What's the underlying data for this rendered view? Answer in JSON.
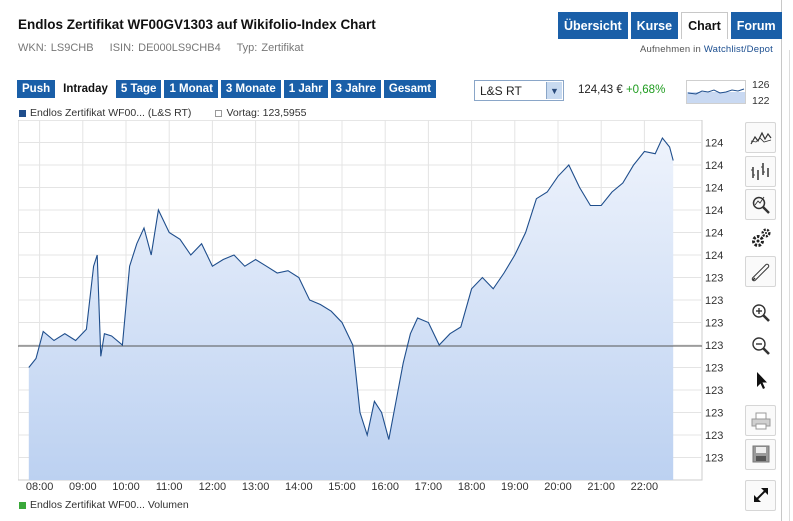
{
  "header": {
    "title": "Endlos Zertifikat WF00GV1303 auf Wikifolio-Index Chart",
    "wkn": "WKN: LS9CHB",
    "isin": "ISIN: DE000LS9CHB4",
    "typ": "Typ: Zertifikat"
  },
  "nav": {
    "tabs": [
      "Übersicht",
      "Kurse",
      "Chart",
      "Forum"
    ],
    "active": "Chart",
    "watch_prefix": "Aufnehmen in ",
    "watch_link": "Watchlist/Depot"
  },
  "toolbar": {
    "ranges": [
      "Push",
      "Intraday",
      "5 Tage",
      "1 Monat",
      "3 Monate",
      "1 Jahr",
      "3 Jahre",
      "Gesamt"
    ],
    "active_range": "Intraday",
    "exchange": "L&S RT",
    "price": "124,43 €",
    "change": "+0,68%",
    "spark_high": "126",
    "spark_low": "122"
  },
  "legend": {
    "series": "Endlos Zertifikat WF00... (L&S RT)",
    "prev": "Vortag: 123,5955",
    "volume": "Endlos Zertifikat WF00... Volumen"
  },
  "colors": {
    "accent": "#1a5fa8",
    "line": "#1f4e8c",
    "fill_top": "#eef3fc",
    "fill_bottom": "#bcd1f1",
    "change_positive": "#1e9c1e",
    "volume": "#3aa83a"
  },
  "tools": [
    "line-chart-icon",
    "ohlc-chart-icon",
    "zoom-area-icon",
    "settings-icon",
    "draw-pen-icon",
    "zoom-in-icon",
    "zoom-out-icon",
    "pointer-icon",
    "print-icon",
    "save-icon",
    "fullscreen-icon"
  ],
  "chart_data": {
    "type": "area",
    "title": "",
    "xlabel": "",
    "ylabel": "",
    "ylim": [
      123.0,
      124.6
    ],
    "x_ticks": [
      "08:00",
      "09:00",
      "10:00",
      "11:00",
      "12:00",
      "13:00",
      "14:00",
      "15:00",
      "16:00",
      "17:00",
      "18:00",
      "19:00",
      "20:00",
      "21:00",
      "22:00"
    ],
    "y_ticks": [
      "123,1",
      "123,2",
      "123,3",
      "123,4",
      "123,5",
      "123,6",
      "123,7",
      "123,8",
      "123,9",
      "124,0",
      "124,1",
      "124,2",
      "124,3",
      "124,4",
      "124,5"
    ],
    "reference_line": 123.5955,
    "series": [
      {
        "name": "Endlos Zertifikat WF00... (L&S RT)",
        "x": [
          "07:45",
          "07:55",
          "08:05",
          "08:20",
          "08:35",
          "08:50",
          "09:05",
          "09:15",
          "09:20",
          "09:25",
          "09:30",
          "09:40",
          "09:55",
          "10:05",
          "10:15",
          "10:25",
          "10:35",
          "10:45",
          "11:00",
          "11:15",
          "11:30",
          "11:45",
          "12:00",
          "12:15",
          "12:30",
          "12:45",
          "13:00",
          "13:15",
          "13:30",
          "13:45",
          "14:00",
          "14:15",
          "14:30",
          "14:45",
          "15:00",
          "15:15",
          "15:25",
          "15:35",
          "15:45",
          "15:55",
          "16:05",
          "16:15",
          "16:25",
          "16:35",
          "16:45",
          "17:00",
          "17:15",
          "17:30",
          "17:45",
          "18:00",
          "18:15",
          "18:30",
          "18:45",
          "19:00",
          "19:15",
          "19:30",
          "19:45",
          "20:00",
          "20:15",
          "20:30",
          "20:45",
          "21:00",
          "21:15",
          "21:30",
          "21:45",
          "22:00",
          "22:15",
          "22:25",
          "22:35",
          "22:40"
        ],
        "values": [
          123.5,
          123.54,
          123.66,
          123.62,
          123.65,
          123.62,
          123.67,
          123.95,
          124.0,
          123.55,
          123.65,
          123.64,
          123.6,
          123.95,
          124.05,
          124.12,
          124.0,
          124.2,
          124.1,
          124.07,
          124.0,
          124.05,
          123.95,
          123.98,
          124.0,
          123.95,
          123.98,
          123.95,
          123.92,
          123.93,
          123.9,
          123.8,
          123.78,
          123.75,
          123.7,
          123.6,
          123.3,
          123.2,
          123.35,
          123.3,
          123.18,
          123.35,
          123.52,
          123.65,
          123.72,
          123.7,
          123.6,
          123.65,
          123.68,
          123.85,
          123.9,
          123.85,
          123.92,
          124.0,
          124.1,
          124.25,
          124.28,
          124.35,
          124.4,
          124.3,
          124.22,
          124.22,
          124.28,
          124.32,
          124.4,
          124.46,
          124.45,
          124.52,
          124.48,
          124.42
        ]
      }
    ]
  }
}
